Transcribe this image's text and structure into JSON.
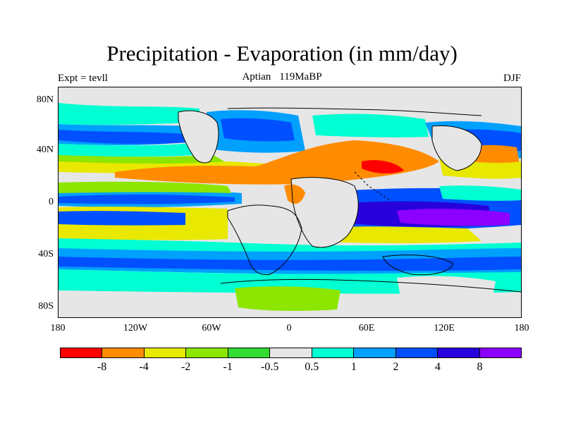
{
  "title": "Precipitation - Evaporation (in mm/day)",
  "left_label": "Expt = tevll",
  "center_label_1": "Aptian",
  "center_label_2": "119MaBP",
  "right_label": "DJF",
  "lat_ticks": [
    "80N",
    "40N",
    "0",
    "40S",
    "80S"
  ],
  "lon_ticks": [
    "180",
    "120W",
    "60W",
    "0",
    "60E",
    "120E",
    "180"
  ],
  "colorbar": {
    "colors": [
      "#ff0000",
      "#ff8c00",
      "#e8e800",
      "#8ce600",
      "#32dc32",
      "#e6e6e6",
      "#00ffd2",
      "#00a0ff",
      "#0050ff",
      "#2800dc",
      "#8c00ff"
    ],
    "labels": [
      "-8",
      "-4",
      "-2",
      "-1",
      "-0.5",
      "0.5",
      "1",
      "2",
      "4",
      "8"
    ]
  },
  "colors": {
    "land_gray": "#e6e6e6",
    "coast": "#000000"
  }
}
